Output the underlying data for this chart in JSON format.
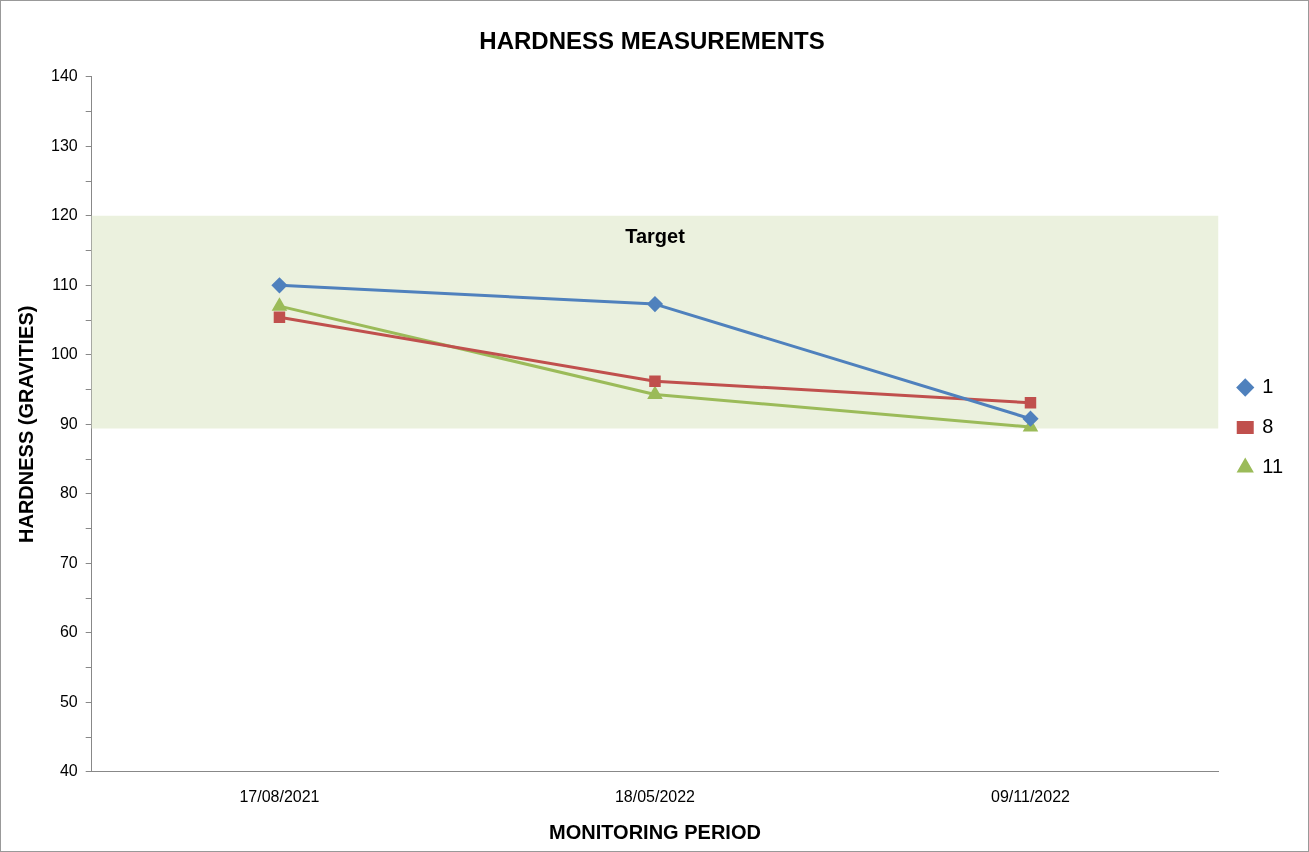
{
  "chart_data": {
    "type": "line",
    "title": "HARDNESS MEASUREMENTS",
    "xlabel": "MONITORING PERIOD",
    "ylabel": "HARDNESS (GRAVITIES)",
    "categories": [
      "17/08/2021",
      "18/05/2022",
      "09/11/2022"
    ],
    "series": [
      {
        "name": "1",
        "color": "#4f81bd",
        "marker": "diamond",
        "values": [
          110,
          107.3,
          90.8
        ]
      },
      {
        "name": "8",
        "color": "#c0504d",
        "marker": "square",
        "values": [
          105.4,
          96.2,
          93.1
        ]
      },
      {
        "name": "11",
        "color": "#9bbb59",
        "marker": "triangle",
        "values": [
          107,
          94.3,
          89.6
        ]
      }
    ],
    "ylim": [
      40,
      140
    ],
    "yticks": [
      40,
      {
        "value": 45,
        "label": null
      },
      50,
      {
        "value": 55,
        "label": null
      },
      60,
      {
        "value": 65,
        "label": null
      },
      70,
      {
        "value": 75,
        "label": null
      },
      80,
      {
        "value": 85,
        "label": null
      },
      90,
      {
        "value": 95,
        "label": null
      },
      100,
      {
        "value": 105,
        "label": null
      },
      110,
      {
        "value": 115,
        "label": null
      },
      120,
      {
        "value": 125,
        "label": null
      },
      130,
      {
        "value": 135,
        "label": null
      },
      140
    ],
    "bands": [
      {
        "axis": "y",
        "from": 89.4,
        "to": 120,
        "label": "Target",
        "color": "#ebf1de"
      }
    ],
    "grid": false,
    "legend": "right",
    "line_style": "solid"
  }
}
